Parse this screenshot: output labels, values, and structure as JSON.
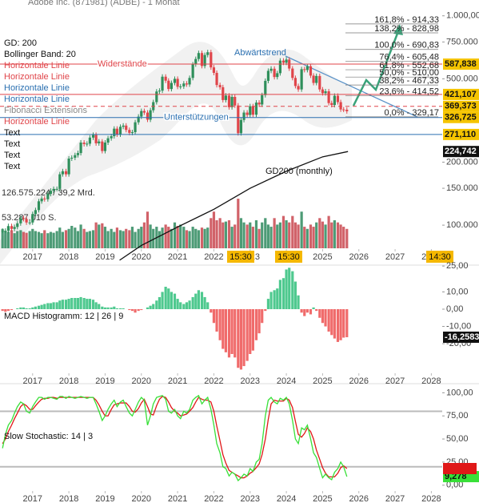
{
  "chart_data": [
    {
      "type": "candlestick",
      "title": "Adobe Inc. (871981) (ADBE) - 1 Monat",
      "log": true,
      "xlim": [
        2016.1,
        2028.3
      ],
      "xticks": [
        2017,
        2018,
        2019,
        2020,
        2021,
        2022,
        2023,
        2024,
        2025,
        2026,
        2027,
        2028
      ],
      "ylim": [
        65,
        1190
      ],
      "yticks": [
        {
          "value": 1000,
          "label": "1.000,00"
        },
        {
          "value": 750,
          "label": "750.000"
        },
        {
          "value": 500,
          "label": "500.000"
        },
        {
          "value": 200,
          "label": "200.000"
        },
        {
          "value": 150,
          "label": "150.000"
        },
        {
          "value": 100,
          "label": "100.000"
        }
      ],
      "up_color": "#2f8f5b",
      "down_color": "#e0454a",
      "x": [
        2016.17,
        2016.25,
        2016.33,
        2016.42,
        2016.5,
        2016.58,
        2016.67,
        2016.75,
        2016.83,
        2016.92,
        2017,
        2017.08,
        2017.17,
        2017.25,
        2017.33,
        2017.42,
        2017.5,
        2017.58,
        2017.67,
        2017.75,
        2017.83,
        2017.92,
        2018,
        2018.08,
        2018.17,
        2018.25,
        2018.33,
        2018.42,
        2018.5,
        2018.58,
        2018.67,
        2018.75,
        2018.83,
        2018.92,
        2019,
        2019.08,
        2019.17,
        2019.25,
        2019.33,
        2019.42,
        2019.5,
        2019.58,
        2019.67,
        2019.75,
        2019.83,
        2019.92,
        2020,
        2020.08,
        2020.17,
        2020.25,
        2020.33,
        2020.42,
        2020.5,
        2020.58,
        2020.67,
        2020.75,
        2020.83,
        2020.92,
        2021,
        2021.08,
        2021.17,
        2021.25,
        2021.33,
        2021.42,
        2021.5,
        2021.58,
        2021.67,
        2021.75,
        2021.83,
        2021.92,
        2022,
        2022.08,
        2022.17,
        2022.25,
        2022.33,
        2022.42,
        2022.5,
        2022.58,
        2022.67,
        2022.75,
        2022.83,
        2022.92,
        2023,
        2023.08,
        2023.17,
        2023.25,
        2023.33,
        2023.42,
        2023.5,
        2023.58,
        2023.67,
        2023.75,
        2023.83,
        2023.92,
        2024,
        2024.08,
        2024.17,
        2024.25,
        2024.33,
        2024.42,
        2024.5,
        2024.58,
        2024.67,
        2024.75,
        2024.83,
        2024.92,
        2025,
        2025.08,
        2025.17,
        2025.25,
        2025.33,
        2025.42,
        2025.5,
        2025.58,
        2025.67
      ],
      "values": [
        94,
        94,
        99,
        96,
        98,
        102,
        108,
        107,
        103,
        103,
        113,
        118,
        130,
        134,
        133,
        141,
        146,
        149,
        149,
        175,
        181,
        175,
        208,
        210,
        216,
        221,
        248,
        244,
        245,
        262,
        270,
        246,
        251,
        226,
        248,
        260,
        266,
        289,
        271,
        295,
        299,
        285,
        276,
        278,
        310,
        330,
        351,
        345,
        319,
        354,
        387,
        435,
        439,
        512,
        490,
        447,
        478,
        500,
        458,
        460,
        475,
        470,
        505,
        586,
        622,
        664,
        576,
        650,
        670,
        567,
        534,
        467,
        456,
        396,
        416,
        366,
        410,
        373,
        275,
        318,
        345,
        336,
        370,
        337,
        385,
        377,
        418,
        489,
        546,
        559,
        510,
        532,
        611,
        597,
        618,
        560,
        505,
        462,
        445,
        556,
        551,
        574,
        518,
        478,
        516,
        445,
        427,
        436,
        383,
        375,
        415,
        387,
        357,
        356,
        350
      ],
      "volume": [
        45,
        40,
        38,
        42,
        35,
        40,
        42,
        38,
        36,
        40,
        45,
        40,
        38,
        35,
        42,
        35,
        38,
        36,
        40,
        48,
        38,
        42,
        45,
        52,
        48,
        40,
        55,
        45,
        38,
        40,
        42,
        60,
        55,
        58,
        50,
        40,
        45,
        38,
        48,
        42,
        40,
        45,
        42,
        50,
        38,
        45,
        50,
        60,
        85,
        55,
        45,
        50,
        40,
        48,
        55,
        50,
        45,
        60,
        52,
        55,
        50,
        42,
        40,
        50,
        45,
        42,
        48,
        45,
        48,
        70,
        85,
        65,
        70,
        60,
        62,
        65,
        50,
        55,
        115,
        70,
        60,
        55,
        60,
        50,
        65,
        45,
        60,
        70,
        55,
        50,
        70,
        55,
        60,
        75,
        65,
        60,
        75,
        60,
        55,
        85,
        50,
        45,
        55,
        50,
        60,
        70,
        62,
        55,
        75,
        60,
        65,
        60,
        55,
        50,
        45
      ],
      "volume_lim": [
        0,
        130
      ],
      "volume_up_color": "#2e8a5e",
      "volume_down_color": "#c9474f",
      "volume_labels": [
        "126.575.224 / 39,2 Mrd.",
        "53.287.010 S."
      ],
      "gd200": {
        "label": "GD200 (monthly)",
        "color": "#111",
        "x": [
          2019.4,
          2020,
          2021,
          2022,
          2023,
          2024,
          2025,
          2025.7
        ],
        "values": [
          68,
          80,
          98,
          119,
          150,
          181,
          212,
          224.742
        ],
        "value_label": "224,742"
      },
      "legend": [
        {
          "text": "GD: 200",
          "color": "#111"
        },
        {
          "text": "Bollinger Band: 20",
          "color": "#111"
        },
        {
          "text": "Horizontale Linie",
          "color": "#e0454a"
        },
        {
          "text": "Horizontale Linie",
          "color": "#e0454a"
        },
        {
          "text": "Horizontale Linie",
          "color": "#2a6fb0"
        },
        {
          "text": "Horizontale Linie",
          "color": "#2a6fb0"
        },
        {
          "text": "Fibonacci Extensions",
          "color": "#888"
        },
        {
          "text": "Horizontale Linie",
          "color": "#e0454a"
        },
        {
          "text": "Text",
          "color": "#111"
        },
        {
          "text": "Text",
          "color": "#111"
        },
        {
          "text": "Text",
          "color": "#111"
        },
        {
          "text": "Text",
          "color": "#111"
        }
      ],
      "hlines": [
        {
          "value": 587.838,
          "label": "587,838",
          "color": "#e0454a",
          "text": "Widerstände"
        },
        {
          "value": 421.107,
          "label": "421,107",
          "color": "#e0454a"
        },
        {
          "value": 369.373,
          "label": "369,373",
          "color": "#e0454a",
          "dashed": true
        },
        {
          "value": 326.725,
          "label": "326,725",
          "color": "#2a6fb0",
          "text": "Unterstützungen"
        },
        {
          "value": 271.11,
          "label": "271,110",
          "color": "#2a6fb0"
        }
      ],
      "fib": [
        {
          "value": 914.33,
          "label": "161,8% - 914,33"
        },
        {
          "value": 828.98,
          "label": "138,2% - 828,98"
        },
        {
          "value": 690.83,
          "label": "100,0% - 690,83"
        },
        {
          "value": 605.48,
          "label": "76,4% - 605,48"
        },
        {
          "value": 552.68,
          "label": "61,8% - 552,68"
        },
        {
          "value": 510,
          "label": "50,0% - 510,00"
        },
        {
          "value": 467.33,
          "label": "38,2% - 467,33"
        },
        {
          "value": 414.52,
          "label": "23,6% - 414,52"
        },
        {
          "value": 329.17,
          "label": "0,0% - 329,17"
        }
      ],
      "trend_label": "Abwärtstrend",
      "time_badges": [
        "15:30",
        "15:30",
        "14:30"
      ]
    },
    {
      "type": "bar",
      "label": "MACD Histogramm: 12 | 26 | 9",
      "pos_color": "#4fc98f",
      "neg_color": "#f06b6b",
      "xlim": [
        2016.1,
        2028.3
      ],
      "xticks": [
        2017,
        2018,
        2019,
        2020,
        2021,
        2022,
        2023,
        2024,
        2025,
        2026,
        2027,
        2028
      ],
      "ylim": [
        -39,
        26
      ],
      "yticks": [
        {
          "value": 25,
          "label": "25,00"
        },
        {
          "value": 10,
          "label": "10,00"
        },
        {
          "value": 0,
          "label": "0,00"
        },
        {
          "value": -10,
          "label": "-10,00"
        },
        {
          "value": -20,
          "label": "-20,00"
        }
      ],
      "x": [
        2016.17,
        2016.25,
        2016.33,
        2016.42,
        2016.5,
        2016.58,
        2016.67,
        2016.75,
        2016.83,
        2016.92,
        2017,
        2017.08,
        2017.17,
        2017.25,
        2017.33,
        2017.42,
        2017.5,
        2017.58,
        2017.67,
        2017.75,
        2017.83,
        2017.92,
        2018,
        2018.08,
        2018.17,
        2018.25,
        2018.33,
        2018.42,
        2018.5,
        2018.58,
        2018.67,
        2018.75,
        2018.83,
        2018.92,
        2019,
        2019.08,
        2019.17,
        2019.25,
        2019.33,
        2019.42,
        2019.5,
        2019.58,
        2019.67,
        2019.75,
        2019.83,
        2019.92,
        2020,
        2020.08,
        2020.17,
        2020.25,
        2020.33,
        2020.42,
        2020.5,
        2020.58,
        2020.67,
        2020.75,
        2020.83,
        2020.92,
        2021,
        2021.08,
        2021.17,
        2021.25,
        2021.33,
        2021.42,
        2021.5,
        2021.58,
        2021.67,
        2021.75,
        2021.83,
        2021.92,
        2022,
        2022.08,
        2022.17,
        2022.25,
        2022.33,
        2022.42,
        2022.5,
        2022.58,
        2022.67,
        2022.75,
        2022.83,
        2022.92,
        2023,
        2023.08,
        2023.17,
        2023.25,
        2023.33,
        2023.42,
        2023.5,
        2023.58,
        2023.67,
        2023.75,
        2023.83,
        2023.92,
        2024,
        2024.08,
        2024.17,
        2024.25,
        2024.33,
        2024.42,
        2024.5,
        2024.58,
        2024.67,
        2024.75,
        2024.83,
        2024.92,
        2025,
        2025.08,
        2025.17,
        2025.25,
        2025.33,
        2025.42,
        2025.5,
        2025.58,
        2025.67
      ],
      "values": [
        -1,
        -1.5,
        -1,
        -0.5,
        0,
        0.5,
        1,
        1,
        0.5,
        0.5,
        1,
        1.5,
        2,
        2.5,
        3,
        3.5,
        3.5,
        4,
        4,
        5,
        5.5,
        5.5,
        6,
        6.5,
        6.5,
        6.5,
        7,
        6.5,
        6,
        6,
        5.5,
        4,
        3,
        1.5,
        1,
        1,
        1,
        1.5,
        0.5,
        0.5,
        0.5,
        0,
        -0.5,
        -1,
        -2,
        -1,
        -0.5,
        0,
        1,
        2,
        3,
        5,
        7,
        10,
        13,
        12,
        10,
        9,
        6,
        4,
        3,
        4,
        5,
        7,
        9,
        11,
        10,
        7,
        4,
        -2,
        -8,
        -13,
        -18,
        -23,
        -25,
        -28,
        -26,
        -28,
        -34,
        -35,
        -33,
        -30,
        -26,
        -24,
        -18,
        -14,
        -8,
        -1,
        6,
        10,
        11,
        12,
        17,
        18,
        23,
        24,
        22,
        16,
        8,
        -2,
        -4,
        -2,
        -3,
        1,
        -1,
        -5,
        -8,
        -10,
        -13,
        -15,
        -17,
        -19,
        -18,
        -16.5,
        -16.2583
      ],
      "value_label": "-16,2583"
    },
    {
      "type": "line",
      "label": "Slow Stochastic: 14 | 3",
      "xlim": [
        2016.1,
        2028.3
      ],
      "xticks": [
        2017,
        2018,
        2019,
        2020,
        2021,
        2022,
        2023,
        2024,
        2025,
        2026,
        2027,
        2028
      ],
      "ylim": [
        -8,
        109
      ],
      "yticks": [
        {
          "value": 100,
          "label": "100,00"
        },
        {
          "value": 75,
          "label": "75,00"
        },
        {
          "value": 50,
          "label": "50,00"
        },
        {
          "value": 25,
          "label": "25,00"
        },
        {
          "value": 0,
          "label": "0,00"
        }
      ],
      "levels": [
        80,
        20
      ],
      "level_color": "#bbb",
      "x": [
        2016.17,
        2016.25,
        2016.33,
        2016.42,
        2016.5,
        2016.58,
        2016.67,
        2016.75,
        2016.83,
        2016.92,
        2017,
        2017.08,
        2017.17,
        2017.25,
        2017.33,
        2017.42,
        2017.5,
        2017.58,
        2017.67,
        2017.75,
        2017.83,
        2017.92,
        2018,
        2018.08,
        2018.17,
        2018.25,
        2018.33,
        2018.42,
        2018.5,
        2018.58,
        2018.67,
        2018.75,
        2018.83,
        2018.92,
        2019,
        2019.08,
        2019.17,
        2019.25,
        2019.33,
        2019.42,
        2019.5,
        2019.58,
        2019.67,
        2019.75,
        2019.83,
        2019.92,
        2020,
        2020.08,
        2020.17,
        2020.25,
        2020.33,
        2020.42,
        2020.5,
        2020.58,
        2020.67,
        2020.75,
        2020.83,
        2020.92,
        2021,
        2021.08,
        2021.17,
        2021.25,
        2021.33,
        2021.42,
        2021.5,
        2021.58,
        2021.67,
        2021.75,
        2021.83,
        2021.92,
        2022,
        2022.08,
        2022.17,
        2022.25,
        2022.33,
        2022.42,
        2022.5,
        2022.58,
        2022.67,
        2022.75,
        2022.83,
        2022.92,
        2023,
        2023.08,
        2023.17,
        2023.25,
        2023.33,
        2023.42,
        2023.5,
        2023.58,
        2023.67,
        2023.75,
        2023.83,
        2023.92,
        2024,
        2024.08,
        2024.17,
        2024.25,
        2024.33,
        2024.42,
        2024.5,
        2024.58,
        2024.67,
        2024.75,
        2024.83,
        2024.92,
        2025,
        2025.08,
        2025.17,
        2025.25,
        2025.33,
        2025.42,
        2025.5,
        2025.58,
        2025.67
      ],
      "series": [
        {
          "color": "#38e038",
          "value_label": "9,278",
          "values": [
            40,
            55,
            65,
            70,
            78,
            85,
            90,
            88,
            80,
            78,
            85,
            90,
            95,
            95,
            93,
            95,
            95,
            94,
            93,
            96,
            96,
            94,
            96,
            95,
            94,
            95,
            96,
            95,
            94,
            95,
            95,
            88,
            80,
            70,
            75,
            82,
            88,
            92,
            85,
            90,
            92,
            85,
            78,
            75,
            82,
            90,
            95,
            92,
            65,
            75,
            88,
            95,
            96,
            97,
            93,
            80,
            78,
            82,
            75,
            72,
            80,
            78,
            82,
            92,
            95,
            97,
            88,
            92,
            95,
            82,
            65,
            45,
            35,
            20,
            18,
            10,
            14,
            12,
            5,
            8,
            12,
            10,
            18,
            15,
            25,
            28,
            45,
            75,
            92,
            95,
            90,
            88,
            94,
            92,
            95,
            88,
            70,
            50,
            45,
            62,
            60,
            65,
            50,
            35,
            30,
            18,
            8,
            12,
            8,
            6,
            14,
            18,
            25,
            20,
            9.278
          ]
        },
        {
          "color": "#e01818",
          "values": [
            45,
            50,
            58,
            65,
            72,
            78,
            85,
            88,
            86,
            82,
            82,
            86,
            90,
            93,
            94,
            94,
            95,
            95,
            94,
            95,
            95,
            95,
            95,
            95,
            95,
            95,
            95,
            95,
            95,
            95,
            95,
            92,
            87,
            80,
            75,
            75,
            82,
            87,
            88,
            89,
            89,
            89,
            85,
            80,
            79,
            83,
            89,
            93,
            85,
            77,
            76,
            86,
            93,
            96,
            95,
            90,
            84,
            80,
            78,
            75,
            76,
            77,
            80,
            84,
            90,
            95,
            93,
            92,
            92,
            90,
            80,
            64,
            48,
            33,
            24,
            16,
            14,
            12,
            10,
            8,
            8,
            10,
            13,
            15,
            19,
            23,
            33,
            50,
            71,
            88,
            92,
            91,
            91,
            91,
            94,
            92,
            84,
            69,
            55,
            52,
            56,
            62,
            58,
            50,
            38,
            28,
            19,
            13,
            9,
            9,
            9,
            13,
            19,
            21,
            18
          ]
        }
      ]
    }
  ]
}
